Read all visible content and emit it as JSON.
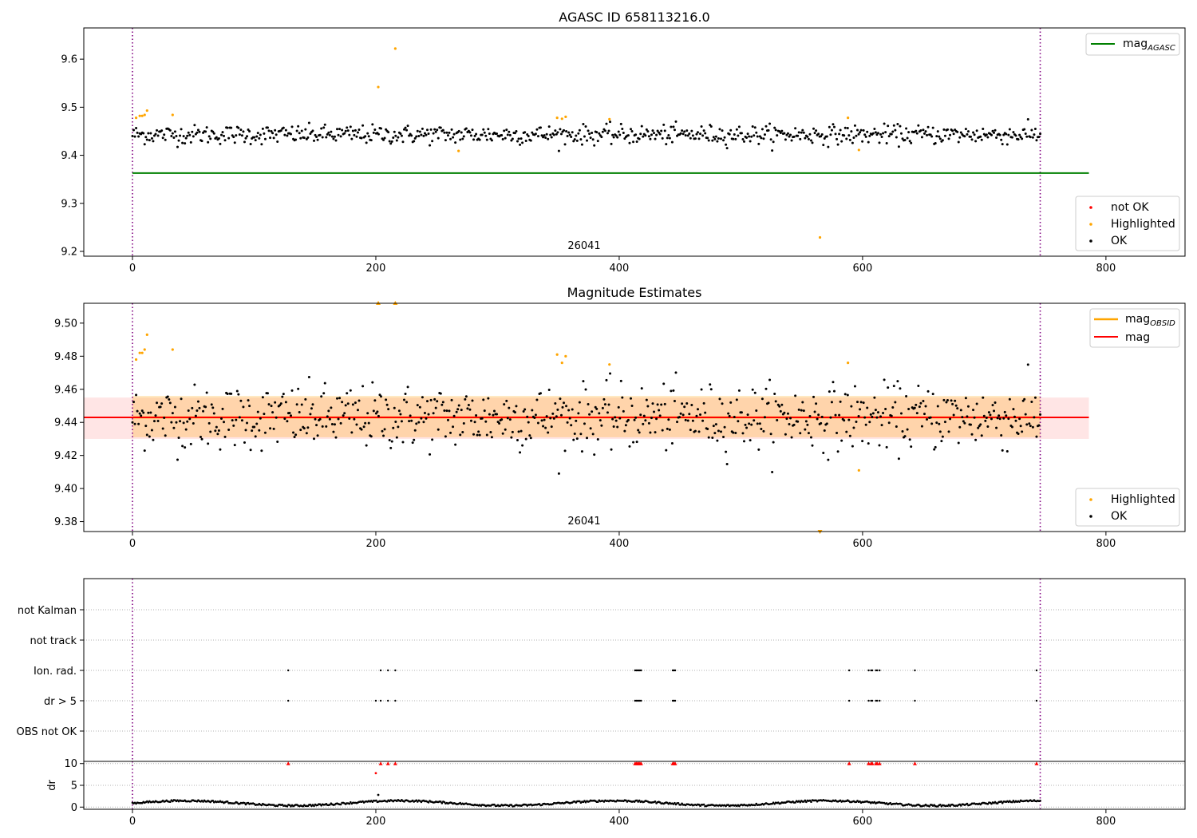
{
  "chart_data": [
    {
      "id": "top",
      "type": "scatter",
      "title": "AGASC ID 658113216.0",
      "xlim": [
        -40,
        865
      ],
      "ylim": [
        9.19,
        9.665
      ],
      "xticks": [
        0,
        200,
        400,
        600,
        800
      ],
      "yticks": [
        9.2,
        9.3,
        9.4,
        9.5,
        9.6
      ],
      "ytick_labels": [
        "9.2",
        "9.3",
        "9.4",
        "9.5",
        "9.6"
      ],
      "vlines": [
        0,
        746
      ],
      "obsid_label": {
        "text": "26041",
        "x": 373
      },
      "ok_series": {
        "name": "OK",
        "x_start": 0,
        "x_end": 746,
        "count": 746,
        "mean": 9.443,
        "spread": 0.013
      },
      "highlighted": {
        "name": "Highlighted",
        "x": [
          3,
          6,
          8,
          10,
          12,
          33,
          202,
          216,
          268,
          349,
          353,
          356,
          392,
          565,
          588,
          597
        ],
        "y": [
          9.478,
          9.482,
          9.482,
          9.484,
          9.493,
          9.484,
          9.542,
          9.622,
          9.409,
          9.478,
          9.476,
          9.48,
          9.475,
          9.229,
          9.478,
          9.411
        ]
      },
      "mag_agasc_line": {
        "name": "mag",
        "subscript": "AGASC",
        "y": 9.363,
        "x_end": 786
      },
      "legend_lines": [
        {
          "name": "mag",
          "subscript": "AGASC",
          "color": "#008000"
        }
      ],
      "legend_points": [
        {
          "name": "not OK",
          "color": "#ff0000"
        },
        {
          "name": "Highlighted",
          "color": "#ffa500"
        },
        {
          "name": "OK",
          "color": "#000000"
        }
      ]
    },
    {
      "id": "middle",
      "type": "scatter",
      "title": "Magnitude Estimates",
      "xlim": [
        -40,
        865
      ],
      "ylim": [
        9.374,
        9.512
      ],
      "xticks": [
        0,
        200,
        400,
        600,
        800
      ],
      "yticks": [
        9.38,
        9.4,
        9.42,
        9.44,
        9.46,
        9.48,
        9.5
      ],
      "ytick_labels": [
        "9.38",
        "9.40",
        "9.42",
        "9.44",
        "9.46",
        "9.48",
        "9.50"
      ],
      "vlines": [
        0,
        746
      ],
      "obsid_label": {
        "text": "26041",
        "x": 373
      },
      "ok_series": {
        "name": "OK",
        "x_start": 0,
        "x_end": 746,
        "count": 746,
        "mean": 9.443,
        "spread": 0.013
      },
      "highlighted": {
        "name": "Highlighted",
        "x": [
          3,
          6,
          8,
          10,
          12,
          33,
          349,
          353,
          356,
          392,
          588,
          597
        ],
        "y": [
          9.478,
          9.482,
          9.482,
          9.484,
          9.493,
          9.484,
          9.481,
          9.476,
          9.48,
          9.475,
          9.476,
          9.411
        ]
      },
      "off_scale_markers": {
        "x": [
          202,
          216,
          565
        ],
        "y": [
          9.512,
          9.512,
          9.374
        ],
        "direction": [
          "up",
          "up",
          "down"
        ]
      },
      "mag_line": {
        "name": "mag",
        "y": 9.443,
        "band": [
          9.43,
          9.455
        ],
        "x_end": 786
      },
      "mag_obsid_line": {
        "name": "mag",
        "subscript": "OBSID",
        "y": 9.443,
        "band": [
          9.431,
          9.456
        ],
        "x_end": 746
      },
      "legend_lines": [
        {
          "name": "mag",
          "subscript": "OBSID",
          "color": "#ffa500"
        },
        {
          "name": "mag",
          "subscript": "",
          "color": "#ff0000"
        }
      ],
      "legend_points": [
        {
          "name": "Highlighted",
          "color": "#ffa500"
        },
        {
          "name": "OK",
          "color": "#000000"
        }
      ]
    },
    {
      "id": "flags",
      "type": "scatter",
      "xlim": [
        -40,
        865
      ],
      "categories": [
        "not Kalman",
        "not track",
        "Ion. rad.",
        "dr > 5",
        "OBS not OK"
      ],
      "vlines": [
        0,
        746
      ],
      "flag_points": {
        "Ion. rad.": [
          128,
          204,
          210,
          216,
          413,
          414,
          415,
          416,
          417,
          418,
          444,
          445,
          446,
          589,
          605,
          607,
          608,
          611,
          612,
          614,
          643,
          743
        ],
        "dr > 5": [
          128,
          200,
          204,
          210,
          216,
          413,
          414,
          415,
          416,
          417,
          418,
          444,
          445,
          446,
          589,
          605,
          607,
          608,
          611,
          612,
          614,
          643,
          743
        ]
      }
    },
    {
      "id": "dr",
      "type": "scatter",
      "ylabel": "dr",
      "xlim": [
        -40,
        865
      ],
      "ylim": [
        -0.5,
        10.5
      ],
      "xticks": [
        0,
        200,
        400,
        600,
        800
      ],
      "yticks": [
        0,
        5,
        10
      ],
      "ytick_labels": [
        "0",
        "5",
        "10"
      ],
      "vlines": [
        0,
        746
      ],
      "clipped_points": {
        "x": [
          128,
          204,
          210,
          216,
          413,
          414,
          415,
          416,
          417,
          418,
          444,
          445,
          446,
          589,
          605,
          607,
          608,
          611,
          612,
          614,
          643,
          743
        ],
        "y": [
          10,
          10,
          10,
          10,
          10,
          10,
          10,
          10,
          10,
          10,
          10,
          10,
          10,
          10,
          10,
          10,
          10,
          10,
          10,
          10,
          10,
          10
        ]
      },
      "outlier_points": {
        "x": [
          200,
          202
        ],
        "y": [
          7.8,
          2.8
        ]
      },
      "baseline": {
        "x_start": 0,
        "x_end": 746,
        "mean": 0.9,
        "amplitude": 0.7
      }
    }
  ]
}
